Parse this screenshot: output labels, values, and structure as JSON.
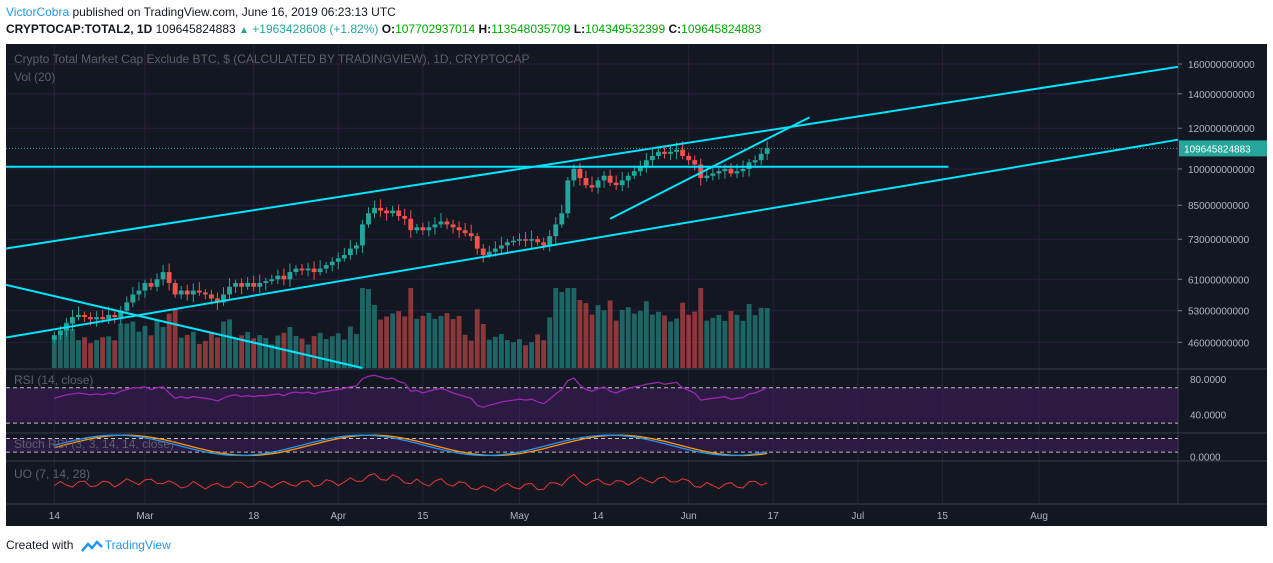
{
  "header": {
    "author": "VictorCobra",
    "published": "published on TradingView.com, June 16, 2019 06:23:13 UTC",
    "symbol": "CRYPTOCAP:TOTAL2, 1D",
    "last": "109645824883",
    "change": "+1963428608 (+1.82%)",
    "o_label": "O:",
    "o_value": "107702937014",
    "h_label": "H:",
    "h_value": "113548035709",
    "l_label": "L:",
    "l_value": "104349532399",
    "c_label": "C:",
    "c_value": "109645824883"
  },
  "footer": {
    "created_with": "Created with",
    "brand": "TradingView"
  },
  "colors": {
    "background": "#131722",
    "up": "#26a69a",
    "down": "#ef5350",
    "trendline": "#00e5ff",
    "grid": "#2a1f3d",
    "osc_band": "#4a1f6a",
    "rsi_line": "#9c27b0",
    "stoch_k": "#2196f3",
    "stoch_d": "#ff9800",
    "uo_line": "#e53935"
  },
  "chart_data": {
    "type": "candlestick",
    "title": "Crypto Total Market Cap Exclude BTC, $ (CALCULATED BY TRADINGVIEW), 1D, CRYPTOCAP",
    "volume_label": "Vol (20)",
    "price_axis_ticks": [
      "160000000000",
      "140000000000",
      "120000000000",
      "100000000000",
      "85000000000",
      "73000000000",
      "61000000000",
      "53000000000",
      "46000000000"
    ],
    "price_axis_values": [
      160000000000,
      140000000000,
      120000000000,
      100000000000,
      85000000000,
      73000000000,
      61000000000,
      53000000000,
      46000000000
    ],
    "price_range": [
      41000000000,
      175000000000
    ],
    "scale": "log",
    "last_price_label": "109645824883",
    "last_price": 109645824883,
    "x_ticks": [
      "14",
      "Mar",
      "18",
      "Apr",
      "15",
      "May",
      "14",
      "Jun",
      "17",
      "Jul",
      "15",
      "Aug"
    ],
    "x_tick_days": [
      0,
      15,
      33,
      47,
      61,
      77,
      90,
      105,
      119,
      133,
      147,
      163
    ],
    "x_range": [
      -8,
      186
    ],
    "closes": [
      47.5,
      48.5,
      50,
      51.5,
      52,
      51.5,
      51,
      51.5,
      51,
      52,
      51.5,
      53,
      55,
      57,
      58,
      60,
      59,
      61,
      63,
      60,
      57,
      58,
      57,
      58,
      57.5,
      57,
      56,
      55,
      57,
      59,
      60,
      59,
      60,
      59,
      60,
      60.5,
      61,
      62,
      61,
      63,
      64,
      63.5,
      64,
      63,
      64,
      65,
      66,
      67,
      68,
      70,
      71,
      78,
      82,
      84,
      83,
      82,
      83,
      81,
      80,
      76,
      77,
      76,
      77,
      78,
      79,
      78,
      77,
      76,
      75,
      74,
      70,
      68,
      69,
      70,
      71,
      72,
      72.5,
      73,
      72.5,
      73,
      72,
      71,
      74,
      78,
      82,
      95,
      100,
      96,
      93,
      92,
      95,
      97,
      94,
      93,
      95,
      97,
      99,
      101,
      104,
      106,
      108,
      107,
      108,
      109,
      106,
      104,
      102,
      96,
      97,
      98,
      99,
      100,
      98,
      99,
      100,
      103,
      104,
      107,
      109.6
    ],
    "trendlines": [
      {
        "x1": -8,
        "p1": 70,
        "x2": 186,
        "p2": 158
      },
      {
        "x1": -8,
        "p1": 47,
        "x2": 186,
        "p2": 114
      },
      {
        "x1": -8,
        "p1": 101,
        "x2": 148,
        "p2": 101
      },
      {
        "x1": -8,
        "p1": 59.5,
        "x2": 51,
        "p2": 41
      },
      {
        "x1": 92,
        "p1": 80,
        "x2": 125,
        "p2": 126
      }
    ],
    "rsi": {
      "label": "RSI (14, close)",
      "ticks": [
        "80.0000",
        "40.0000"
      ],
      "tick_values": [
        80,
        40
      ],
      "range": [
        20,
        90
      ],
      "band": [
        30,
        70
      ],
      "values": [
        58,
        60,
        62,
        63,
        64,
        63,
        62,
        63,
        62,
        64,
        63,
        66,
        68,
        70,
        70,
        71,
        68,
        70,
        71,
        64,
        58,
        60,
        58,
        60,
        59,
        58,
        57,
        55,
        58,
        61,
        62,
        60,
        61,
        60,
        61,
        61,
        62,
        63,
        61,
        64,
        65,
        64,
        65,
        63,
        65,
        66,
        67,
        68,
        69,
        71,
        72,
        80,
        83,
        84,
        82,
        80,
        81,
        77,
        75,
        66,
        67,
        64,
        66,
        68,
        69,
        67,
        64,
        62,
        60,
        58,
        50,
        48,
        50,
        52,
        54,
        55,
        56,
        57,
        56,
        57,
        54,
        52,
        57,
        63,
        68,
        78,
        81,
        73,
        68,
        66,
        69,
        71,
        66,
        64,
        67,
        69,
        71,
        72,
        74,
        75,
        76,
        74,
        75,
        76,
        70,
        67,
        64,
        56,
        57,
        58,
        59,
        60,
        57,
        58,
        59,
        63,
        64,
        67,
        70
      ]
    },
    "stoch_rsi": {
      "label": "Stoch RSI (3, 3, 14, 14, close)",
      "ticks": [
        "0.0000"
      ],
      "tick_values": [
        0
      ],
      "range": [
        -15,
        100
      ]
    },
    "uo": {
      "label": "UO (7, 14, 28)"
    }
  }
}
